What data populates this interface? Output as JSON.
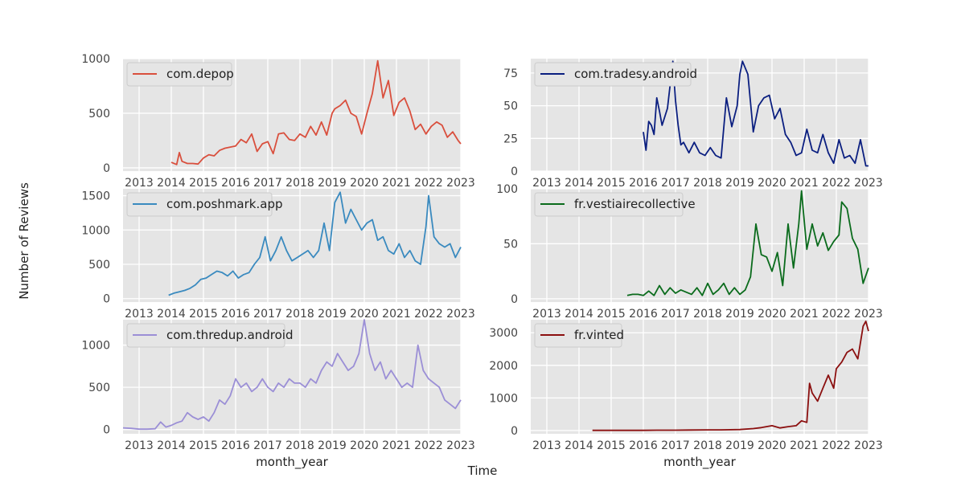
{
  "figure": {
    "supxlabel": "Time",
    "supylabel": "Number of Reviews"
  },
  "chart_data": [
    {
      "type": "line",
      "series": [
        {
          "name": "com.depop",
          "color": "#d94f3d",
          "x": [
            "2014-01",
            "2014-03",
            "2014-04",
            "2014-05",
            "2014-07",
            "2014-09",
            "2014-11",
            "2015-01",
            "2015-03",
            "2015-05",
            "2015-07",
            "2015-09",
            "2015-11",
            "2016-01",
            "2016-03",
            "2016-05",
            "2016-07",
            "2016-09",
            "2016-11",
            "2017-01",
            "2017-03",
            "2017-05",
            "2017-07",
            "2017-09",
            "2017-11",
            "2018-01",
            "2018-03",
            "2018-05",
            "2018-07",
            "2018-09",
            "2018-11",
            "2019-01",
            "2019-02",
            "2019-04",
            "2019-06",
            "2019-08",
            "2019-10",
            "2019-12",
            "2020-02",
            "2020-04",
            "2020-06",
            "2020-08",
            "2020-10",
            "2020-12",
            "2021-02",
            "2021-04",
            "2021-06",
            "2021-08",
            "2021-10",
            "2021-12",
            "2022-02",
            "2022-04",
            "2022-06",
            "2022-08",
            "2022-10",
            "2022-12",
            "2023-01"
          ],
          "y": [
            50,
            30,
            140,
            60,
            40,
            40,
            35,
            90,
            120,
            110,
            160,
            180,
            190,
            200,
            260,
            230,
            310,
            150,
            220,
            240,
            130,
            310,
            320,
            260,
            250,
            310,
            280,
            380,
            300,
            420,
            300,
            500,
            540,
            570,
            620,
            500,
            470,
            310,
            500,
            680,
            980,
            640,
            800,
            480,
            600,
            640,
            520,
            350,
            400,
            310,
            380,
            420,
            390,
            280,
            330,
            250,
            220
          ]
        }
      ],
      "xlabel": "month_year",
      "ylabel": "",
      "xlim": [
        "2012-07",
        "2023-01"
      ],
      "ylim": [
        -30,
        1000
      ],
      "xticks": [
        "2013",
        "2014",
        "2015",
        "2016",
        "2017",
        "2018",
        "2019",
        "2020",
        "2021",
        "2022",
        "2023"
      ],
      "yticks": [
        0,
        500,
        1000
      ],
      "grid": true,
      "legend": "upper-left"
    },
    {
      "type": "line",
      "series": [
        {
          "name": "com.tradesy.android",
          "color": "#0b1f80",
          "x": [
            "2016-01",
            "2016-02",
            "2016-03",
            "2016-04",
            "2016-05",
            "2016-06",
            "2016-07",
            "2016-08",
            "2016-10",
            "2016-12",
            "2017-01",
            "2017-02",
            "2017-03",
            "2017-04",
            "2017-06",
            "2017-08",
            "2017-10",
            "2017-12",
            "2018-02",
            "2018-04",
            "2018-06",
            "2018-08",
            "2018-10",
            "2018-12",
            "2019-01",
            "2019-02",
            "2019-04",
            "2019-06",
            "2019-08",
            "2019-10",
            "2019-12",
            "2020-02",
            "2020-04",
            "2020-06",
            "2020-08",
            "2020-10",
            "2020-12",
            "2021-02",
            "2021-04",
            "2021-06",
            "2021-08",
            "2021-10",
            "2021-12",
            "2022-02",
            "2022-04",
            "2022-06",
            "2022-08",
            "2022-10",
            "2022-12",
            "2023-01"
          ],
          "y": [
            30,
            16,
            38,
            35,
            28,
            56,
            46,
            35,
            48,
            84,
            54,
            35,
            20,
            22,
            14,
            22,
            14,
            12,
            18,
            12,
            10,
            56,
            34,
            50,
            74,
            84,
            74,
            30,
            50,
            56,
            58,
            40,
            48,
            28,
            22,
            12,
            14,
            32,
            16,
            14,
            28,
            14,
            6,
            24,
            10,
            12,
            6,
            24,
            4,
            4
          ]
        }
      ],
      "xlabel": "",
      "ylabel": "",
      "xlim": [
        "2012-07",
        "2023-01"
      ],
      "ylim": [
        0,
        86
      ],
      "xticks": [
        "2013",
        "2014",
        "2015",
        "2016",
        "2017",
        "2018",
        "2019",
        "2020",
        "2021",
        "2022",
        "2023"
      ],
      "yticks": [
        0,
        25,
        50,
        75
      ],
      "grid": true,
      "legend": "upper-left"
    },
    {
      "type": "line",
      "series": [
        {
          "name": "com.poshmark.app",
          "color": "#3a8abf",
          "x": [
            "2013-12",
            "2014-02",
            "2014-04",
            "2014-06",
            "2014-08",
            "2014-10",
            "2014-12",
            "2015-02",
            "2015-04",
            "2015-06",
            "2015-08",
            "2015-10",
            "2015-12",
            "2016-02",
            "2016-04",
            "2016-06",
            "2016-08",
            "2016-10",
            "2016-12",
            "2017-02",
            "2017-04",
            "2017-06",
            "2017-08",
            "2017-10",
            "2017-12",
            "2018-02",
            "2018-04",
            "2018-06",
            "2018-08",
            "2018-10",
            "2018-12",
            "2019-02",
            "2019-04",
            "2019-06",
            "2019-08",
            "2019-10",
            "2019-12",
            "2020-02",
            "2020-04",
            "2020-06",
            "2020-08",
            "2020-10",
            "2020-12",
            "2021-02",
            "2021-04",
            "2021-06",
            "2021-08",
            "2021-10",
            "2021-12",
            "2022-01",
            "2022-03",
            "2022-05",
            "2022-07",
            "2022-09",
            "2022-11",
            "2023-01"
          ],
          "y": [
            50,
            80,
            100,
            120,
            150,
            200,
            280,
            300,
            350,
            400,
            380,
            330,
            400,
            300,
            350,
            380,
            500,
            600,
            900,
            550,
            700,
            900,
            700,
            550,
            600,
            650,
            700,
            600,
            700,
            1100,
            700,
            1400,
            1550,
            1100,
            1300,
            1150,
            1000,
            1100,
            1150,
            850,
            900,
            700,
            650,
            800,
            600,
            700,
            550,
            500,
            1050,
            1500,
            900,
            800,
            750,
            800,
            600,
            750
          ]
        }
      ],
      "xlabel": "",
      "ylabel": "",
      "xlim": [
        "2012-07",
        "2023-01"
      ],
      "ylim": [
        -50,
        1600
      ],
      "xticks": [
        "2013",
        "2014",
        "2015",
        "2016",
        "2017",
        "2018",
        "2019",
        "2020",
        "2021",
        "2022",
        "2023"
      ],
      "yticks": [
        0,
        500,
        1000,
        1500
      ],
      "grid": true,
      "legend": "upper-left"
    },
    {
      "type": "line",
      "series": [
        {
          "name": "fr.vestiairecollective",
          "color": "#0a6b1c",
          "x": [
            "2015-07",
            "2015-09",
            "2015-11",
            "2016-01",
            "2016-03",
            "2016-05",
            "2016-07",
            "2016-09",
            "2016-11",
            "2017-01",
            "2017-03",
            "2017-05",
            "2017-07",
            "2017-09",
            "2017-11",
            "2018-01",
            "2018-03",
            "2018-05",
            "2018-07",
            "2018-09",
            "2018-11",
            "2019-01",
            "2019-03",
            "2019-05",
            "2019-07",
            "2019-09",
            "2019-11",
            "2020-01",
            "2020-03",
            "2020-05",
            "2020-07",
            "2020-09",
            "2020-11",
            "2020-12",
            "2021-02",
            "2021-04",
            "2021-06",
            "2021-08",
            "2021-10",
            "2021-12",
            "2022-02",
            "2022-03",
            "2022-05",
            "2022-07",
            "2022-09",
            "2022-11",
            "2023-01"
          ],
          "y": [
            3,
            4,
            4,
            3,
            7,
            3,
            12,
            4,
            10,
            5,
            8,
            6,
            4,
            10,
            3,
            14,
            4,
            8,
            14,
            4,
            10,
            4,
            8,
            20,
            68,
            40,
            38,
            25,
            42,
            12,
            68,
            28,
            68,
            98,
            45,
            68,
            48,
            60,
            44,
            52,
            58,
            88,
            82,
            55,
            45,
            14,
            28
          ]
        }
      ],
      "xlabel": "",
      "ylabel": "",
      "xlim": [
        "2012-07",
        "2023-01"
      ],
      "ylim": [
        -3,
        100
      ],
      "xticks": [
        "2013",
        "2014",
        "2015",
        "2016",
        "2017",
        "2018",
        "2019",
        "2020",
        "2021",
        "2022",
        "2023"
      ],
      "yticks": [
        0,
        50,
        100
      ],
      "grid": true,
      "legend": "upper-left"
    },
    {
      "type": "line",
      "series": [
        {
          "name": "com.thredup.android",
          "color": "#9b8fd6",
          "x": [
            "2012-07",
            "2012-10",
            "2013-01",
            "2013-04",
            "2013-07",
            "2013-09",
            "2013-11",
            "2014-01",
            "2014-03",
            "2014-05",
            "2014-07",
            "2014-09",
            "2014-11",
            "2015-01",
            "2015-03",
            "2015-05",
            "2015-07",
            "2015-09",
            "2015-11",
            "2016-01",
            "2016-03",
            "2016-05",
            "2016-07",
            "2016-09",
            "2016-11",
            "2017-01",
            "2017-03",
            "2017-05",
            "2017-07",
            "2017-09",
            "2017-11",
            "2018-01",
            "2018-03",
            "2018-05",
            "2018-07",
            "2018-09",
            "2018-11",
            "2019-01",
            "2019-03",
            "2019-05",
            "2019-07",
            "2019-09",
            "2019-11",
            "2020-01",
            "2020-03",
            "2020-05",
            "2020-07",
            "2020-09",
            "2020-11",
            "2021-01",
            "2021-03",
            "2021-05",
            "2021-07",
            "2021-09",
            "2021-11",
            "2022-01",
            "2022-03",
            "2022-05",
            "2022-07",
            "2022-09",
            "2022-11",
            "2023-01"
          ],
          "y": [
            20,
            15,
            5,
            5,
            10,
            90,
            30,
            50,
            80,
            100,
            200,
            150,
            120,
            150,
            100,
            200,
            350,
            300,
            400,
            600,
            500,
            550,
            450,
            500,
            600,
            500,
            450,
            550,
            500,
            600,
            550,
            550,
            500,
            600,
            550,
            700,
            800,
            750,
            900,
            800,
            700,
            750,
            900,
            1300,
            900,
            700,
            800,
            600,
            700,
            600,
            500,
            550,
            500,
            1000,
            700,
            600,
            550,
            500,
            350,
            300,
            250,
            350
          ]
        }
      ],
      "xlabel": "month_year",
      "ylabel": "",
      "xlim": [
        "2012-07",
        "2023-01"
      ],
      "ylim": [
        -50,
        1300
      ],
      "xticks": [
        "2013",
        "2014",
        "2015",
        "2016",
        "2017",
        "2018",
        "2019",
        "2020",
        "2021",
        "2022",
        "2023"
      ],
      "yticks": [
        0,
        500,
        1000
      ],
      "grid": true,
      "legend": "upper-left"
    },
    {
      "type": "line",
      "series": [
        {
          "name": "fr.vinted",
          "color": "#8b0f0f",
          "x": [
            "2014-06",
            "2014-09",
            "2015-01",
            "2015-06",
            "2016-01",
            "2016-06",
            "2017-01",
            "2017-06",
            "2018-01",
            "2018-06",
            "2019-01",
            "2019-06",
            "2019-09",
            "2020-01",
            "2020-04",
            "2020-07",
            "2020-10",
            "2020-12",
            "2021-02",
            "2021-03",
            "2021-04",
            "2021-06",
            "2021-08",
            "2021-10",
            "2021-12",
            "2022-01",
            "2022-03",
            "2022-05",
            "2022-07",
            "2022-09",
            "2022-11",
            "2022-12",
            "2023-01"
          ],
          "y": [
            5,
            5,
            5,
            5,
            5,
            10,
            10,
            15,
            20,
            20,
            30,
            60,
            90,
            150,
            80,
            120,
            150,
            300,
            250,
            1450,
            1150,
            900,
            1300,
            1700,
            1300,
            1900,
            2100,
            2400,
            2500,
            2200,
            3200,
            3350,
            3050
          ]
        }
      ],
      "xlabel": "month_year",
      "ylabel": "",
      "xlim": [
        "2012-07",
        "2023-01"
      ],
      "ylim": [
        -100,
        3400
      ],
      "xticks": [
        "2013",
        "2014",
        "2015",
        "2016",
        "2017",
        "2018",
        "2019",
        "2020",
        "2021",
        "2022",
        "2023"
      ],
      "yticks": [
        0,
        1000,
        2000,
        3000
      ],
      "grid": true,
      "legend": "upper-left"
    }
  ]
}
